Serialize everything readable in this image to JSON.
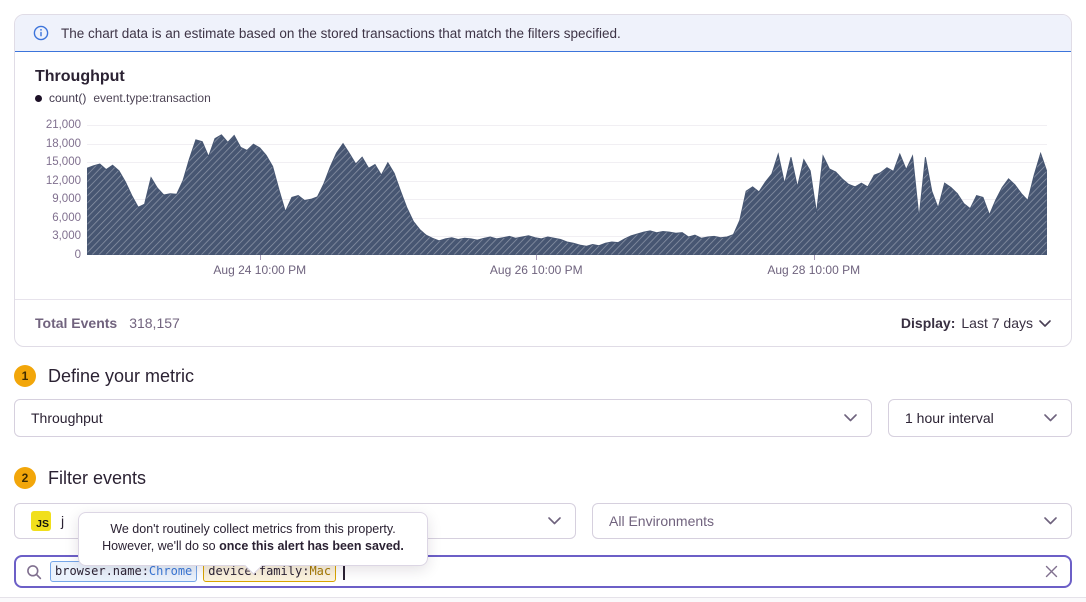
{
  "banner": {
    "text": "The chart data is an estimate based on the stored transactions that match the filters specified."
  },
  "chart_panel": {
    "title": "Throughput",
    "legend": {
      "aggregate": "count()",
      "query": "event.type:transaction"
    },
    "total_events_label": "Total Events",
    "total_events_value": "318,157",
    "display_label": "Display:",
    "display_value": "Last 7 days"
  },
  "chart_data": {
    "type": "area",
    "title": "Throughput",
    "series_name": "count() event.type:transaction",
    "interval": "1 hour",
    "ylim": [
      0,
      21000
    ],
    "grid": true,
    "fill_color": "#475672",
    "fill_pattern": "diagonal-hatch",
    "y_ticks": [
      "21,000",
      "18,000",
      "15,000",
      "12,000",
      "9,000",
      "6,000",
      "3,000",
      "0"
    ],
    "x_ticks": [
      {
        "label": "Aug 24 10:00 PM",
        "pos": 0.18
      },
      {
        "label": "Aug 26 10:00 PM",
        "pos": 0.468
      },
      {
        "label": "Aug 28 10:00 PM",
        "pos": 0.757
      }
    ],
    "values": [
      14000,
      14400,
      14700,
      13800,
      14500,
      13600,
      11800,
      9600,
      7700,
      8200,
      12500,
      10800,
      9700,
      9900,
      9800,
      12000,
      15500,
      18600,
      18300,
      15900,
      18800,
      19400,
      18200,
      19300,
      17400,
      16900,
      17900,
      17300,
      16100,
      14300,
      10500,
      7000,
      9300,
      9600,
      8800,
      9000,
      9400,
      11500,
      14200,
      16500,
      18000,
      16400,
      14700,
      15800,
      14000,
      14600,
      12900,
      14900,
      13200,
      10300,
      7600,
      5400,
      4100,
      3200,
      2700,
      2300,
      2600,
      2800,
      2500,
      2700,
      2600,
      2400,
      2700,
      2900,
      2600,
      2800,
      3000,
      2700,
      2900,
      3100,
      2800,
      2600,
      2900,
      2700,
      2500,
      2100,
      1900,
      1600,
      1400,
      1700,
      1500,
      1900,
      2100,
      2000,
      2600,
      3100,
      3400,
      3700,
      3900,
      3600,
      3800,
      3700,
      3500,
      3600,
      2900,
      3200,
      2700,
      2900,
      3000,
      2800,
      2900,
      3300,
      5600,
      10300,
      11000,
      10200,
      11800,
      13100,
      16300,
      11500,
      15800,
      11000,
      15400,
      13600,
      6800,
      16000,
      13900,
      13400,
      12300,
      11400,
      11000,
      11600,
      11000,
      12900,
      13300,
      14100,
      13500,
      16300,
      13800,
      16000,
      6000,
      15800,
      10300,
      7600,
      11600,
      10900,
      9900,
      8300,
      7500,
      9600,
      9300,
      6500,
      8900,
      10900,
      12300,
      11300,
      9900,
      8800,
      12900,
      16400,
      13400
    ]
  },
  "steps": [
    {
      "number": "1",
      "title": "Define your metric"
    },
    {
      "number": "2",
      "title": "Filter events"
    }
  ],
  "metric": {
    "selected": "Throughput",
    "interval_selected": "1 hour interval"
  },
  "filter": {
    "project": {
      "badge": "JS",
      "name_visible": "j"
    },
    "environment": "All Environments",
    "search": {
      "tokens": [
        {
          "key": "browser.name:",
          "value": "Chrome",
          "style": "blue"
        },
        {
          "key": "device.family:",
          "value": "Mac",
          "style": "amber"
        }
      ]
    }
  },
  "tooltip": {
    "line1": "We don't routinely collect metrics from this property.",
    "line2_regular": "However, we'll do so ",
    "line2_bold": "once this alert has been saved."
  },
  "colors": {
    "accent_purple": "#6C5FC7",
    "banner_blue": "#3C74DB",
    "step_badge": "#F2A60A",
    "chart_fill": "#475672",
    "token_blue_border": "#76A7E9",
    "token_amber_border": "#DAA500"
  }
}
